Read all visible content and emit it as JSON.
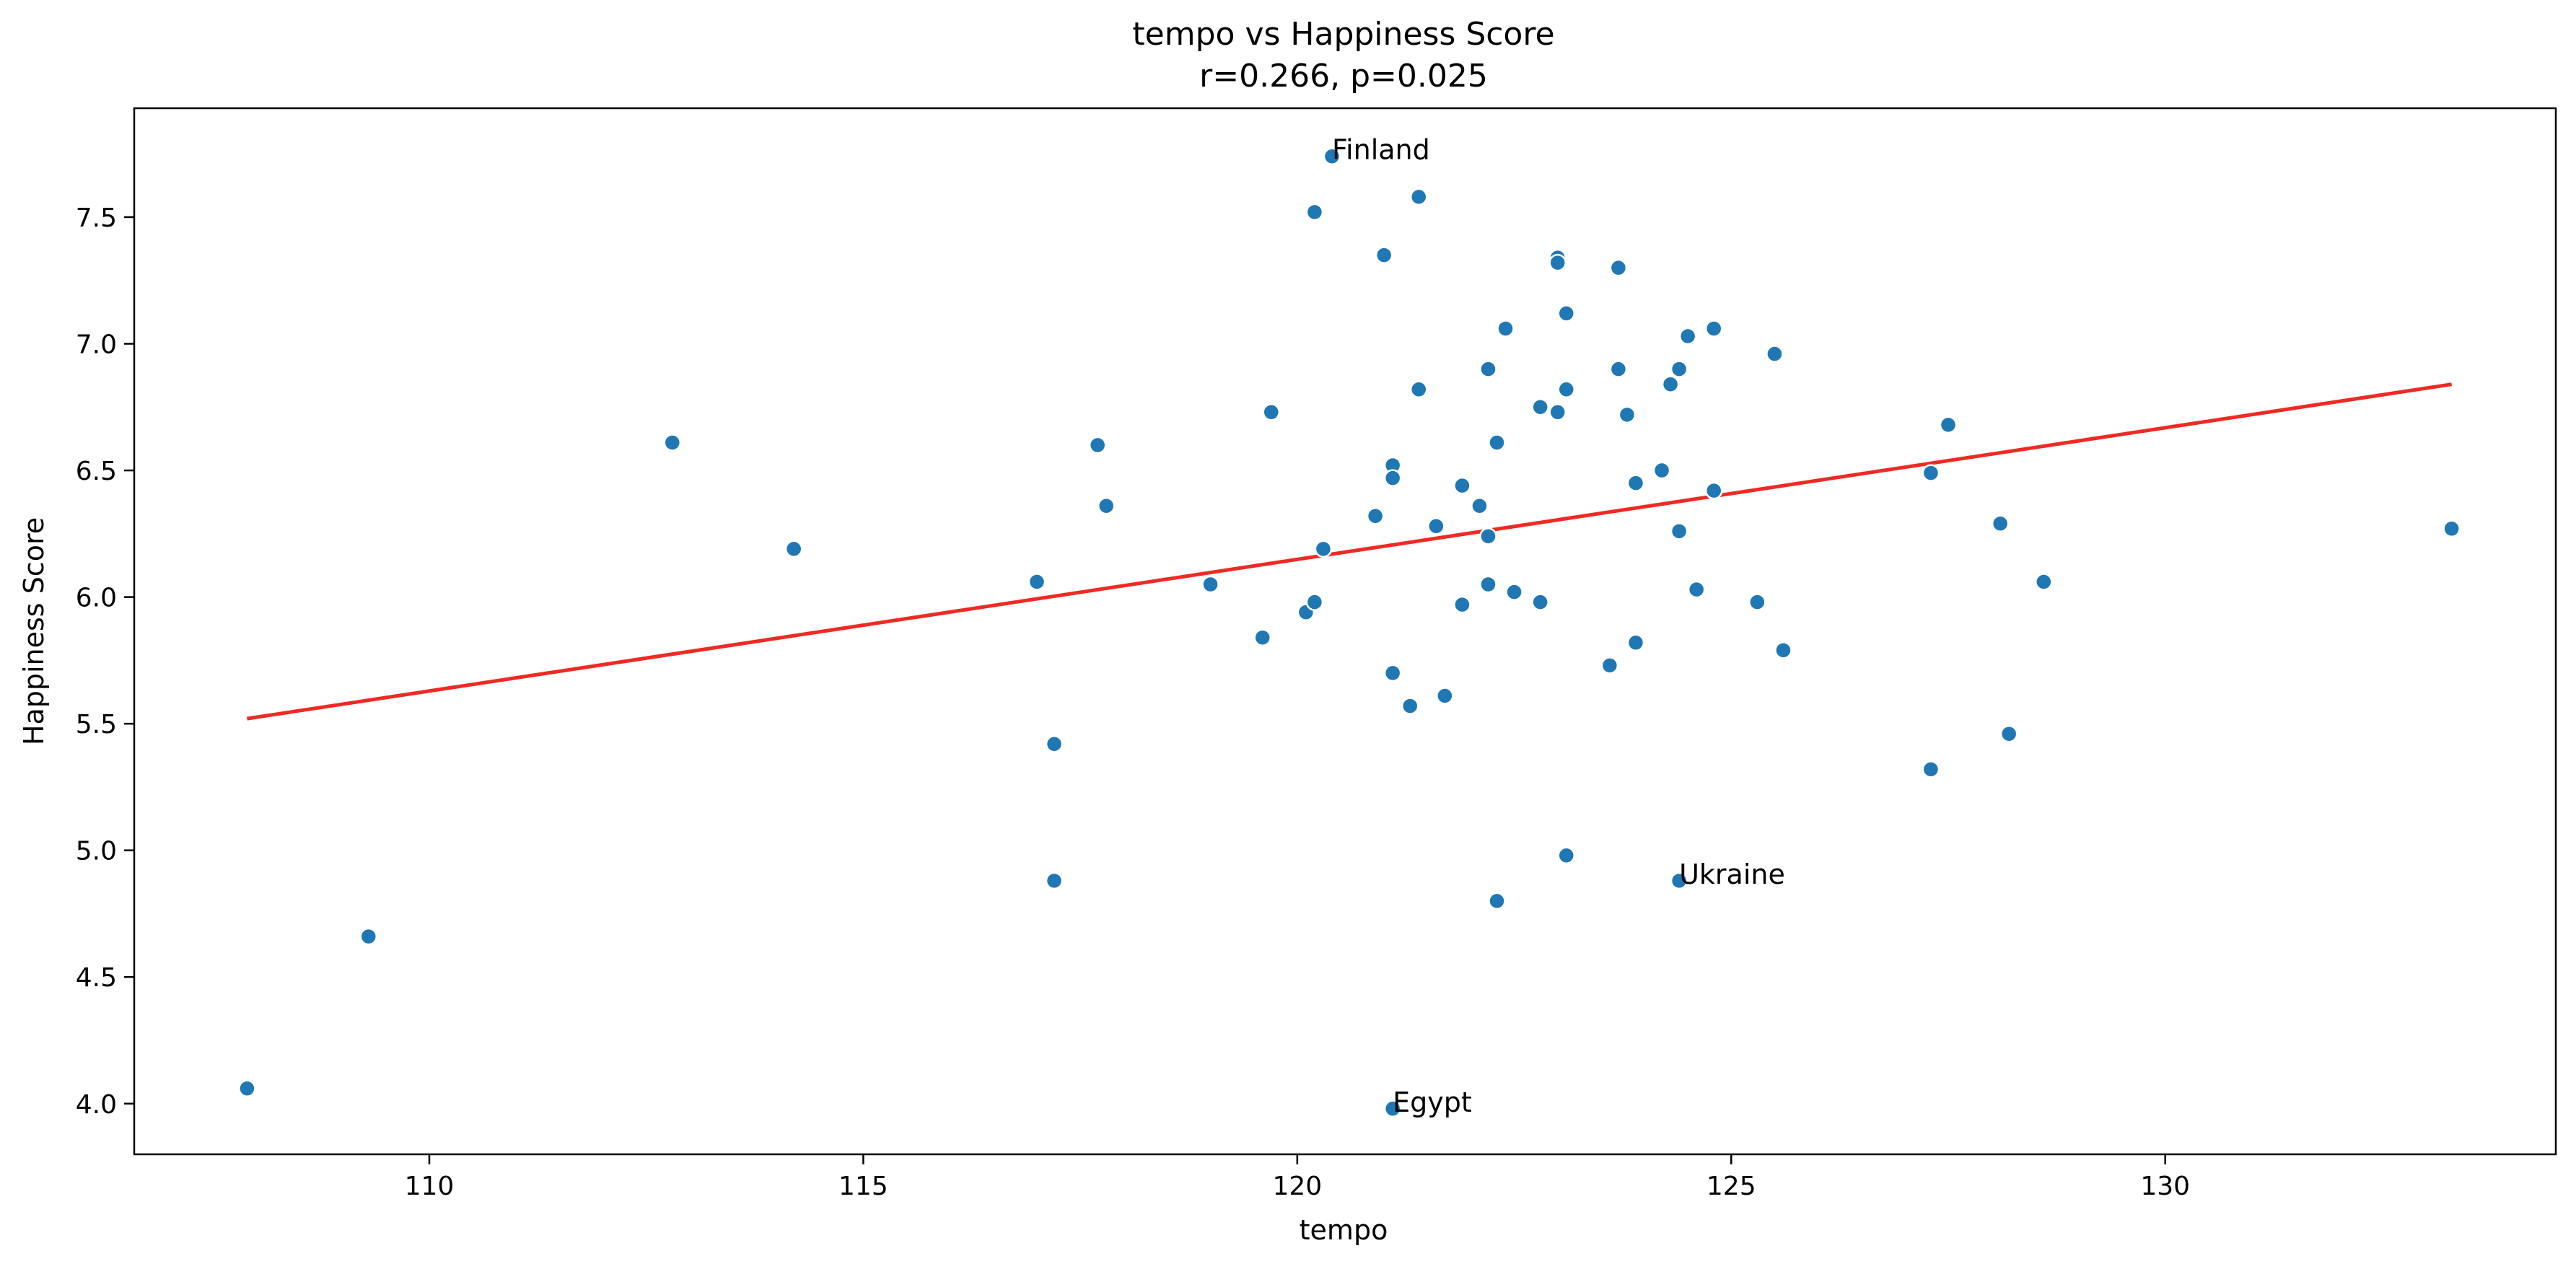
{
  "chart_data": {
    "type": "scatter",
    "title": "tempo vs Happiness Score",
    "subtitle": "r=0.266, p=0.025",
    "xlabel": "tempo",
    "ylabel": "Happiness Score",
    "xlim": [
      106.6,
      134.5
    ],
    "ylim": [
      3.8,
      7.93
    ],
    "xticks": [
      110,
      115,
      120,
      125,
      130
    ],
    "yticks": [
      4.0,
      4.5,
      5.0,
      5.5,
      6.0,
      6.5,
      7.0,
      7.5
    ],
    "xtick_labels": [
      "110",
      "115",
      "120",
      "125",
      "130"
    ],
    "ytick_labels": [
      "4.0",
      "4.5",
      "5.0",
      "5.5",
      "6.0",
      "6.5",
      "7.0",
      "7.5"
    ],
    "grid": false,
    "colors": {
      "points": "#1f77b4",
      "trend": "#ee2a24"
    },
    "points": [
      {
        "x": 107.9,
        "y": 4.06
      },
      {
        "x": 109.3,
        "y": 4.66
      },
      {
        "x": 112.8,
        "y": 6.61
      },
      {
        "x": 114.2,
        "y": 6.19
      },
      {
        "x": 117.0,
        "y": 6.06
      },
      {
        "x": 117.2,
        "y": 5.42
      },
      {
        "x": 117.2,
        "y": 4.88
      },
      {
        "x": 117.7,
        "y": 6.6
      },
      {
        "x": 117.8,
        "y": 6.36
      },
      {
        "x": 119.0,
        "y": 6.05
      },
      {
        "x": 119.6,
        "y": 5.84
      },
      {
        "x": 119.7,
        "y": 6.73
      },
      {
        "x": 120.1,
        "y": 5.94
      },
      {
        "x": 120.2,
        "y": 5.98
      },
      {
        "x": 120.2,
        "y": 7.52
      },
      {
        "x": 120.3,
        "y": 6.19
      },
      {
        "x": 120.4,
        "y": 7.74
      },
      {
        "x": 120.9,
        "y": 6.32
      },
      {
        "x": 121.0,
        "y": 7.35
      },
      {
        "x": 121.1,
        "y": 6.52
      },
      {
        "x": 121.1,
        "y": 5.7
      },
      {
        "x": 121.1,
        "y": 6.47
      },
      {
        "x": 121.1,
        "y": 3.98
      },
      {
        "x": 121.3,
        "y": 5.57
      },
      {
        "x": 121.4,
        "y": 7.58
      },
      {
        "x": 121.4,
        "y": 6.82
      },
      {
        "x": 121.6,
        "y": 6.28
      },
      {
        "x": 121.7,
        "y": 5.61
      },
      {
        "x": 121.9,
        "y": 5.97
      },
      {
        "x": 121.9,
        "y": 6.44
      },
      {
        "x": 122.1,
        "y": 6.36
      },
      {
        "x": 122.2,
        "y": 6.05
      },
      {
        "x": 122.2,
        "y": 6.24
      },
      {
        "x": 122.2,
        "y": 6.9
      },
      {
        "x": 122.3,
        "y": 4.8
      },
      {
        "x": 122.3,
        "y": 6.61
      },
      {
        "x": 122.4,
        "y": 7.06
      },
      {
        "x": 122.5,
        "y": 6.02
      },
      {
        "x": 122.8,
        "y": 5.98
      },
      {
        "x": 122.8,
        "y": 6.75
      },
      {
        "x": 123.0,
        "y": 7.34
      },
      {
        "x": 123.0,
        "y": 7.32
      },
      {
        "x": 123.0,
        "y": 6.73
      },
      {
        "x": 123.1,
        "y": 7.12
      },
      {
        "x": 123.1,
        "y": 6.82
      },
      {
        "x": 123.1,
        "y": 4.98
      },
      {
        "x": 123.6,
        "y": 5.73
      },
      {
        "x": 123.7,
        "y": 7.3
      },
      {
        "x": 123.7,
        "y": 6.9
      },
      {
        "x": 123.8,
        "y": 6.72
      },
      {
        "x": 123.9,
        "y": 6.45
      },
      {
        "x": 123.9,
        "y": 5.82
      },
      {
        "x": 124.2,
        "y": 6.5
      },
      {
        "x": 124.3,
        "y": 6.84
      },
      {
        "x": 124.4,
        "y": 6.9
      },
      {
        "x": 124.4,
        "y": 6.26
      },
      {
        "x": 124.4,
        "y": 4.88
      },
      {
        "x": 124.5,
        "y": 7.03
      },
      {
        "x": 124.6,
        "y": 6.03
      },
      {
        "x": 124.8,
        "y": 7.06
      },
      {
        "x": 124.8,
        "y": 6.42
      },
      {
        "x": 125.3,
        "y": 5.98
      },
      {
        "x": 125.5,
        "y": 6.96
      },
      {
        "x": 125.6,
        "y": 5.79
      },
      {
        "x": 127.3,
        "y": 6.49
      },
      {
        "x": 127.3,
        "y": 5.32
      },
      {
        "x": 127.5,
        "y": 6.68
      },
      {
        "x": 128.1,
        "y": 6.29
      },
      {
        "x": 128.2,
        "y": 5.46
      },
      {
        "x": 128.6,
        "y": 6.06
      },
      {
        "x": 133.3,
        "y": 6.27
      }
    ],
    "trend_line": {
      "x": [
        107.9,
        133.3
      ],
      "y": [
        5.52,
        6.84
      ]
    },
    "annotations": [
      {
        "text": "Finland",
        "x": 120.4,
        "y": 7.74
      },
      {
        "text": "Ukraine",
        "x": 124.4,
        "y": 4.88
      },
      {
        "text": "Egypt",
        "x": 121.1,
        "y": 3.98
      }
    ]
  }
}
